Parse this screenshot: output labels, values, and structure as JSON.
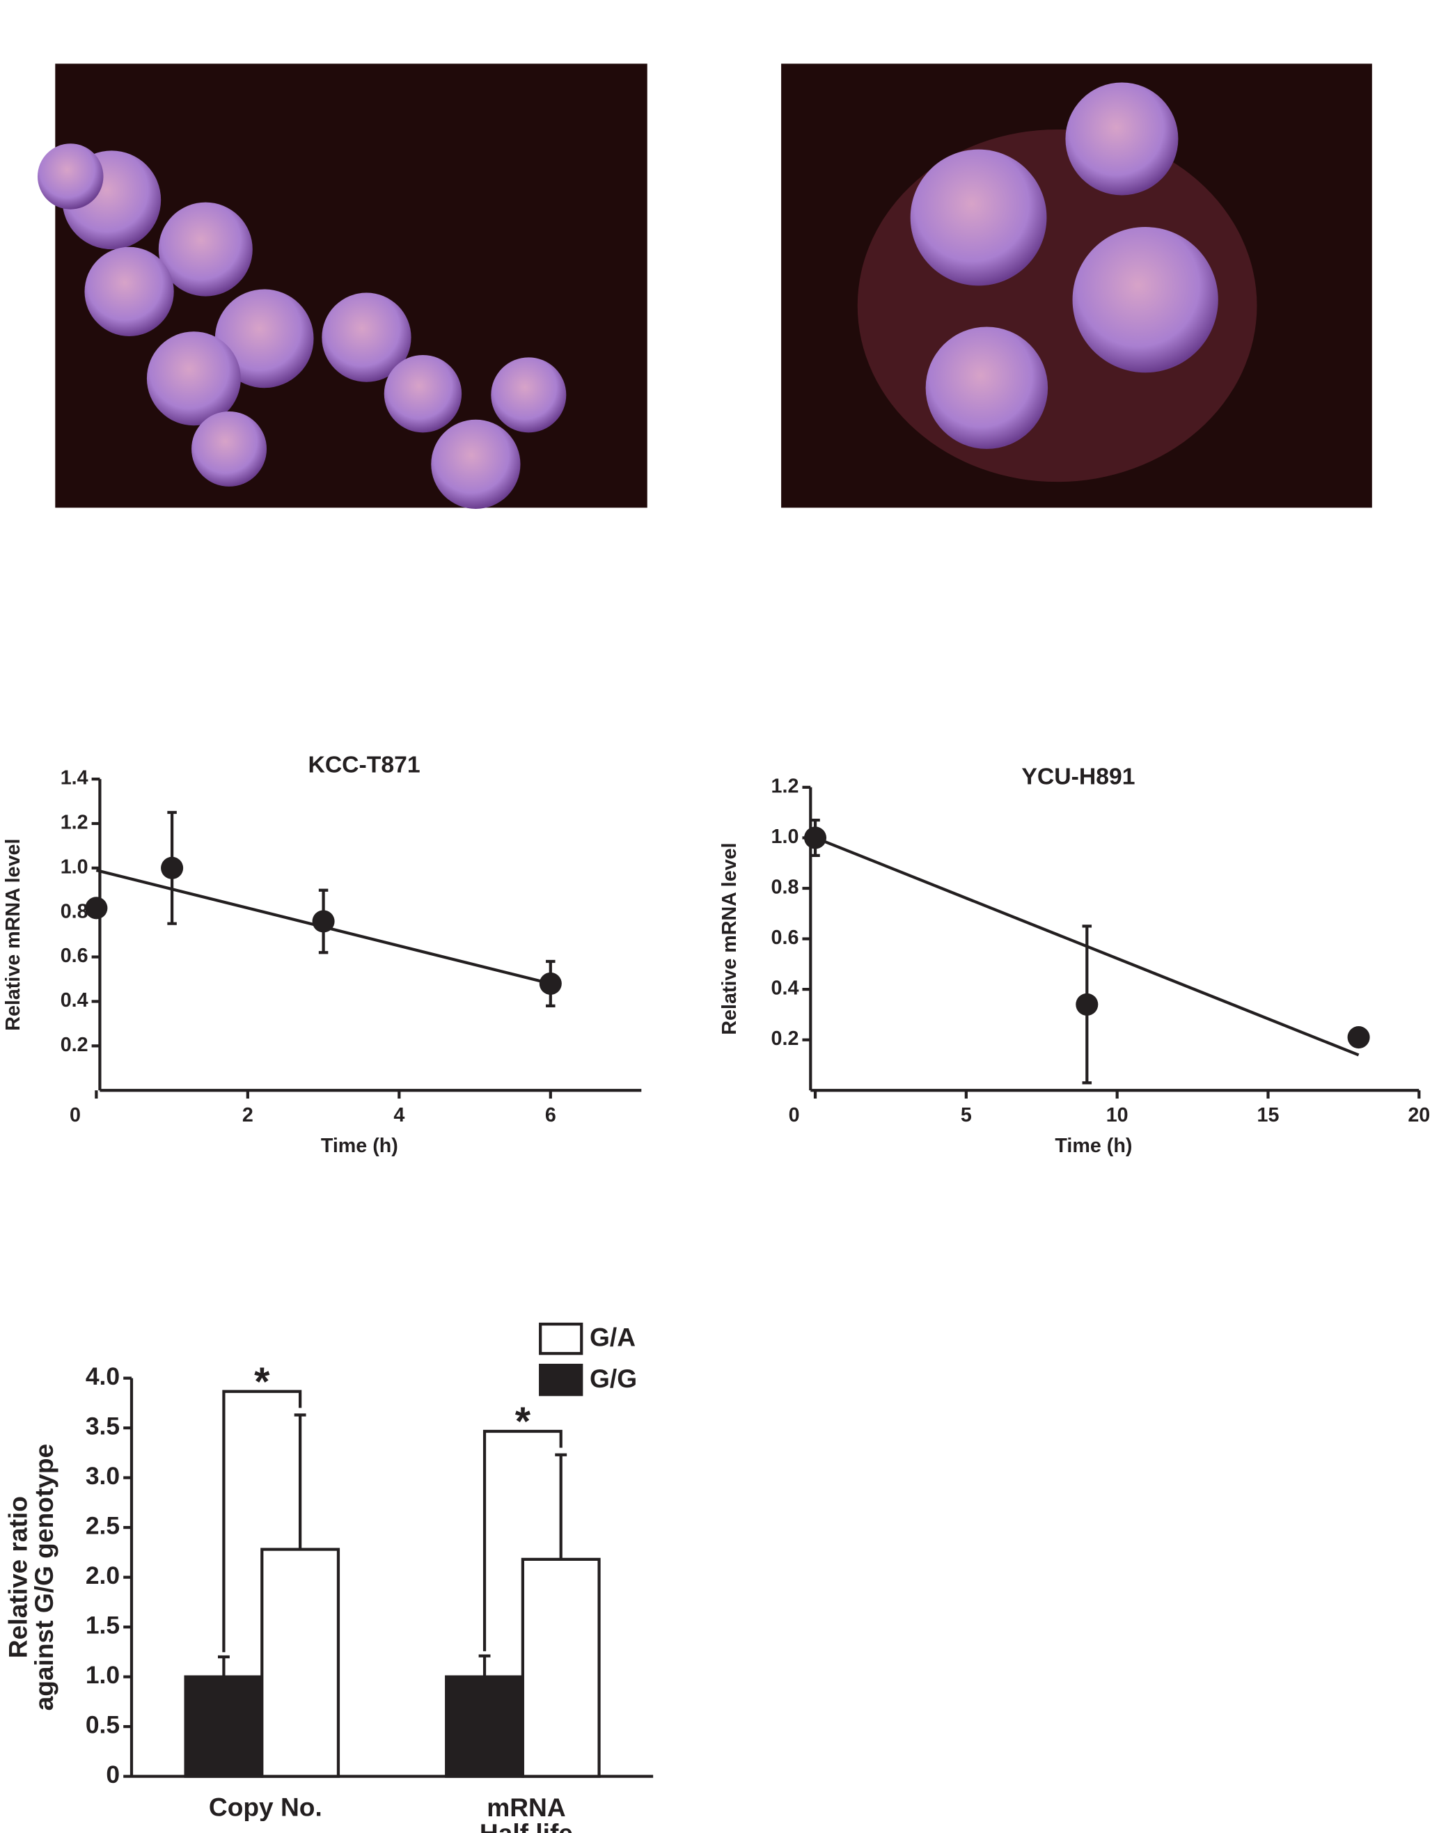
{
  "chart_data": [
    {
      "type": "scatter",
      "title": "KCC-T871",
      "xlabel": "Time (h)",
      "ylabel": "Relative mRNA level",
      "x": [
        0,
        1,
        3,
        6
      ],
      "series": [
        {
          "color": "#231f20",
          "values": [
            0.82,
            1.0,
            0.76,
            0.48
          ],
          "errors": [
            null,
            0.25,
            0.14,
            0.1
          ]
        }
      ],
      "lines": [
        {
          "color": "#231f20",
          "x": [
            0,
            6
          ],
          "values": [
            0.99,
            0.48
          ]
        }
      ],
      "xlim": [
        0,
        7.2
      ],
      "xticks": [
        0,
        2,
        4,
        6
      ],
      "ylim": [
        0,
        1.4
      ],
      "yticks": [
        0.2,
        0.4,
        0.6,
        0.8,
        {
          "value": 1,
          "label": "1.0"
        },
        1.2,
        1.4
      ]
    },
    {
      "type": "scatter",
      "title": "YCU-H891",
      "xlabel": "Time (h)",
      "ylabel": "Relative mRNA level",
      "x": [
        0,
        9,
        18
      ],
      "series": [
        {
          "color": "#231f20",
          "values": [
            1.0,
            0.34,
            0.21
          ],
          "errors": [
            0.07,
            0.31,
            null
          ]
        }
      ],
      "lines": [
        {
          "color": "#231f20",
          "x": [
            0,
            18
          ],
          "values": [
            1.0,
            0.14
          ]
        }
      ],
      "xlim": [
        0,
        20
      ],
      "xticks": [
        0,
        5,
        10,
        15,
        20
      ],
      "ylim": [
        0,
        1.2
      ],
      "yticks": [
        0.2,
        0.4,
        0.6,
        0.8,
        {
          "value": 1,
          "label": "1.0"
        },
        1.2
      ]
    },
    {
      "type": "bar",
      "ylabel": "Relative ratio\nagainst G/G genotype",
      "categories": [
        "Copy No.",
        "mRNA\nHalf life"
      ],
      "series": [
        {
          "name": "G/G",
          "color": "#231f20",
          "values": [
            1.0,
            1.0
          ],
          "errors": [
            0.2,
            0.21
          ]
        },
        {
          "name": "G/A",
          "color": "#ffffff",
          "values": [
            2.28,
            2.18
          ],
          "errors": [
            1.35,
            1.05
          ]
        }
      ],
      "annotations": [
        "*",
        "*"
      ],
      "legend": "top-right",
      "ylim": [
        0,
        4
      ],
      "yticks": [
        0,
        0.5,
        {
          "value": 1,
          "label": "1.0"
        },
        1.5,
        {
          "value": 2,
          "label": "2.0"
        },
        2.5,
        {
          "value": 3,
          "label": "3.0"
        },
        3.5,
        {
          "value": 4,
          "label": "4.0"
        }
      ]
    }
  ]
}
